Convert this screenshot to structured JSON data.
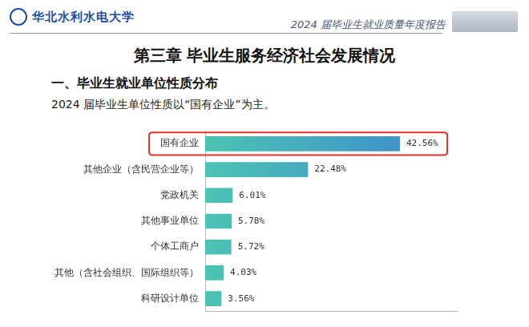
{
  "header": {
    "school": "华北水利水电大学",
    "report": "2024 届毕业生就业质量年度报告"
  },
  "chapter": "第三章 毕业生服务经济社会发展情况",
  "chart_data": {
    "type": "bar",
    "orientation": "horizontal",
    "title": "一、毕业生就业单位性质分布",
    "subtitle": "2024 届毕业生单位性质以“国有企业”为主。",
    "categories": [
      "国有企业",
      "其他企业（含民营企业等）",
      "党政机关",
      "其他事业单位",
      "个体工商户",
      "其他（含社会组织、国际组织等）",
      "科研设计单位"
    ],
    "values": [
      42.56,
      22.48,
      6.01,
      5.78,
      5.72,
      4.03,
      3.56
    ],
    "value_labels": [
      "42.56%",
      "22.48%",
      "6.01%",
      "5.78%",
      "5.72%",
      "4.03%",
      "3.56%"
    ],
    "data_labels": true,
    "color": "#3b86d0",
    "xlim": [
      0,
      55
    ],
    "xticks": [],
    "tick_labels": "y",
    "grid": false
  }
}
